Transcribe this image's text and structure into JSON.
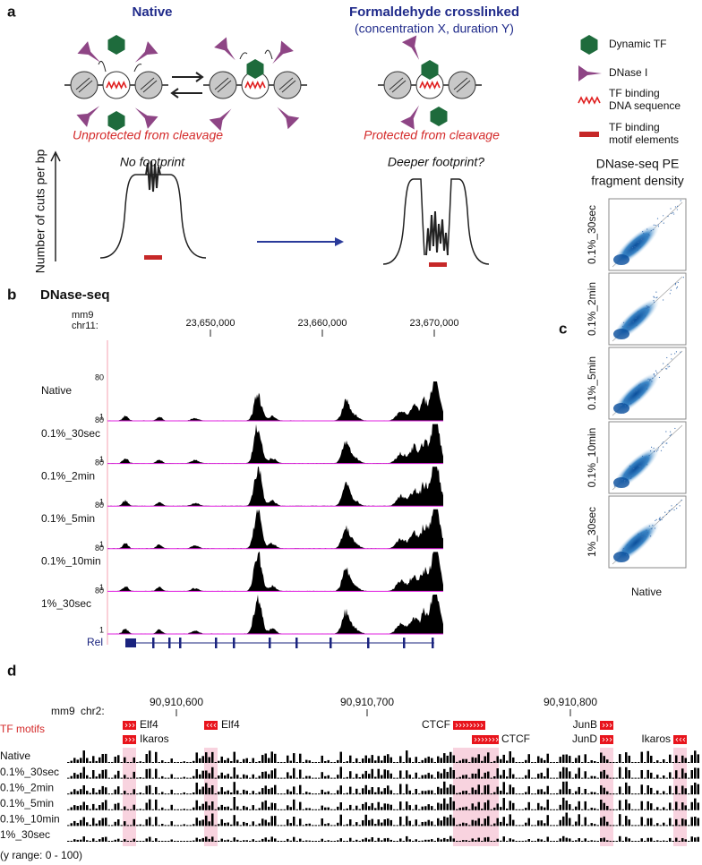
{
  "panel_a": {
    "label": "a",
    "native_title": "Native",
    "crosslinked_title": "Formaldehyde crosslinked",
    "crosslinked_subtitle": "(concentration X, duration Y)",
    "unprotected": "Unprotected from cleavage",
    "protected": "Protected from cleavage",
    "legend": [
      [
        "Dynamic TF"
      ],
      [
        "DNase I"
      ],
      [
        "TF binding",
        "DNA sequence"
      ],
      [
        "TF binding",
        "motif elements"
      ]
    ],
    "y_axis_label": "Number of cuts per bp",
    "no_footprint": "No footprint",
    "deeper_footprint": "Deeper footprint?"
  },
  "panel_b": {
    "label": "b",
    "title": "DNase-seq",
    "assembly": "mm9",
    "chromosome": "chr11:",
    "ticks": [
      "23,650,000",
      "23,660,000",
      "23,670,000"
    ],
    "scale_max": 80,
    "scale_min": 1,
    "tracks": [
      "Native",
      "0.1%_30sec",
      "0.1%_2min",
      "0.1%_5min",
      "0.1%_10min",
      "1%_30sec"
    ],
    "gene": "Rel"
  },
  "panel_c": {
    "label": "c",
    "title": [
      "DNase-seq PE",
      "fragment density"
    ],
    "y_labels": [
      "0.1%_30sec",
      "0.1%_2min",
      "0.1%_5min",
      "0.1%_10min",
      "1%_30sec"
    ],
    "x_label": "Native"
  },
  "panel_d": {
    "label": "d",
    "assembly": "mm9",
    "chromosome": "chr2:",
    "ticks": [
      "90,910,600",
      "90,910,700",
      "90,910,800"
    ],
    "motif_header": "TF motifs",
    "motifs": [
      "Elf4",
      "Ikaros",
      "Elf4",
      "CTCF",
      "CTCF",
      "JunB",
      "JunD",
      "Ikaros"
    ],
    "tracks": [
      "Native",
      "0.1%_30sec",
      "0.1%_2min",
      "0.1%_5min",
      "0.1%_10min",
      "1%_30sec"
    ],
    "y_range": "(y range: 0 - 100)"
  }
}
